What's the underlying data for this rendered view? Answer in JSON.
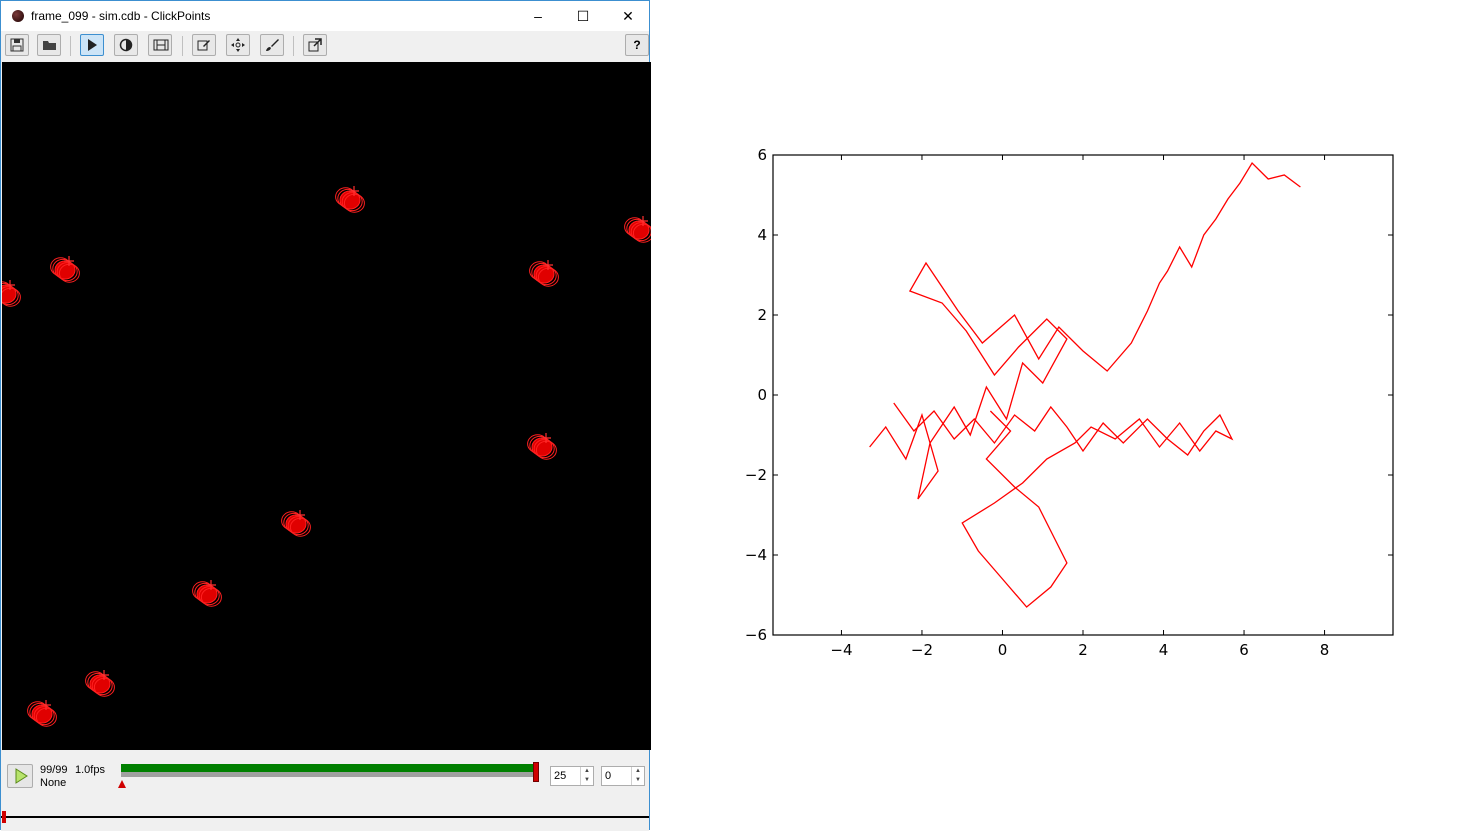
{
  "window": {
    "title": "frame_099 - sim.cdb - ClickPoints",
    "minimize_glyph": "–",
    "maximize_glyph": "☐",
    "close_glyph": "✕"
  },
  "toolbar": {
    "items": [
      {
        "name": "save-icon"
      },
      {
        "name": "open-folder-icon"
      },
      {
        "name": "play-icon",
        "active": true
      },
      {
        "name": "contrast-icon"
      },
      {
        "name": "film-icon"
      },
      {
        "name": "edit-icon"
      },
      {
        "name": "move-icon"
      },
      {
        "name": "brush-icon"
      },
      {
        "name": "export-icon"
      }
    ],
    "help_label": "?"
  },
  "timeline": {
    "frame_counter": "99/99",
    "fps": "1.0fps",
    "marker_type": "None",
    "progress": 1.0,
    "skip_value": "25",
    "offset_value": "0",
    "accent_color": "#008000",
    "marker_color": "#d00000"
  },
  "chart_data": {
    "type": "line",
    "title": "",
    "xlabel": "",
    "ylabel": "",
    "xlim": [
      -5.7,
      9.7
    ],
    "ylim": [
      -6,
      6
    ],
    "xticks": [
      "−4",
      "−2",
      "0",
      "2",
      "4",
      "6",
      "8"
    ],
    "xtick_values": [
      -4,
      -2,
      0,
      2,
      4,
      6,
      8
    ],
    "yticks": [
      "6",
      "4",
      "2",
      "0",
      "−2",
      "−4",
      "−6"
    ],
    "ytick_values": [
      6,
      4,
      2,
      0,
      -2,
      -4,
      -6
    ],
    "line_color": "#ff0000",
    "grid": false,
    "series": [
      {
        "x": [
          -3.3,
          -2.9,
          -2.4,
          -2.0,
          -1.6,
          -2.1,
          -1.8,
          -1.2,
          -0.8,
          -0.4,
          0.1,
          0.5,
          1.0,
          1.6,
          1.1,
          0.4,
          -0.2,
          -0.9,
          -1.5,
          -2.3,
          -1.9,
          -1.1,
          -0.5,
          0.3,
          0.9,
          1.4,
          2.0,
          2.6,
          3.2,
          3.6,
          3.9,
          4.1,
          4.4,
          4.7,
          5.0,
          5.3,
          5.6,
          5.9,
          6.2,
          6.6,
          7.0,
          7.4
        ],
        "y": [
          -1.3,
          -0.8,
          -1.6,
          -0.5,
          -1.9,
          -2.6,
          -1.2,
          -0.3,
          -1.0,
          0.2,
          -0.6,
          0.8,
          0.3,
          1.4,
          1.9,
          1.2,
          0.5,
          1.6,
          2.3,
          2.6,
          3.3,
          2.1,
          1.3,
          2.0,
          0.9,
          1.7,
          1.1,
          0.6,
          1.3,
          2.1,
          2.8,
          3.1,
          3.7,
          3.2,
          4.0,
          4.4,
          4.9,
          5.3,
          5.8,
          5.4,
          5.5,
          5.2
        ]
      },
      {
        "x": [
          -0.3,
          0.2,
          -0.4,
          0.3,
          0.9,
          1.3,
          1.6,
          1.2,
          0.6,
          0.0,
          -0.6,
          -1.0,
          -0.2,
          0.5,
          1.1,
          1.8,
          2.2,
          2.8,
          3.4,
          3.9,
          4.4,
          4.9,
          5.3,
          5.7,
          5.4,
          5.0,
          4.6,
          4.1,
          3.6,
          3.0,
          2.5,
          2.0,
          1.6,
          1.2,
          0.8,
          0.3,
          -0.2,
          -0.7,
          -1.2,
          -1.7,
          -2.2,
          -2.7
        ],
        "y": [
          -0.4,
          -0.9,
          -1.6,
          -2.3,
          -2.8,
          -3.6,
          -4.2,
          -4.8,
          -5.3,
          -4.6,
          -3.9,
          -3.2,
          -2.7,
          -2.2,
          -1.6,
          -1.2,
          -0.8,
          -1.1,
          -0.6,
          -1.3,
          -0.7,
          -1.4,
          -0.9,
          -1.1,
          -0.5,
          -0.9,
          -1.5,
          -1.1,
          -0.6,
          -1.2,
          -0.7,
          -1.4,
          -0.8,
          -0.3,
          -0.9,
          -0.5,
          -1.2,
          -0.6,
          -1.1,
          -0.4,
          -0.9,
          -0.2
        ]
      }
    ]
  }
}
